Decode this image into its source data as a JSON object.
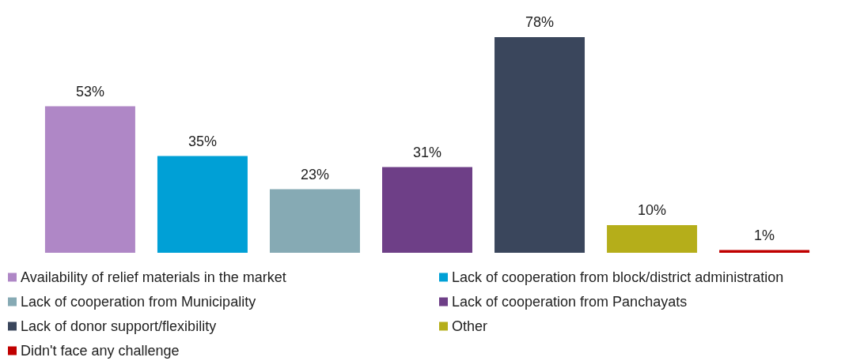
{
  "chart_data": {
    "type": "bar",
    "categories": [
      null
    ],
    "series": [
      {
        "name": "Availability of relief materials in the market",
        "color": "#af87c6",
        "values": [
          53
        ],
        "value_labels": [
          "53%"
        ]
      },
      {
        "name": "Lack of cooperation from block/district administration",
        "color": "#00a0d6",
        "values": [
          35
        ],
        "value_labels": [
          "35%"
        ]
      },
      {
        "name": "Lack of cooperation from Municipality",
        "color": "#86aab4",
        "values": [
          23
        ],
        "value_labels": [
          "23%"
        ]
      },
      {
        "name": "Lack of cooperation from Panchayats",
        "color": "#6e3f87",
        "values": [
          31
        ],
        "value_labels": [
          "31%"
        ]
      },
      {
        "name": "Lack of donor support/flexibility",
        "color": "#3a465c",
        "values": [
          78
        ],
        "value_labels": [
          "78%"
        ]
      },
      {
        "name": "Other",
        "color": "#b5ae1a",
        "values": [
          10
        ],
        "value_labels": [
          "10%"
        ]
      },
      {
        "name": "Didn't face any challenge",
        "color": "#c00000",
        "values": [
          1
        ],
        "value_labels": [
          "1%"
        ]
      }
    ],
    "tick_labels": false,
    "legend": "bottom"
  }
}
